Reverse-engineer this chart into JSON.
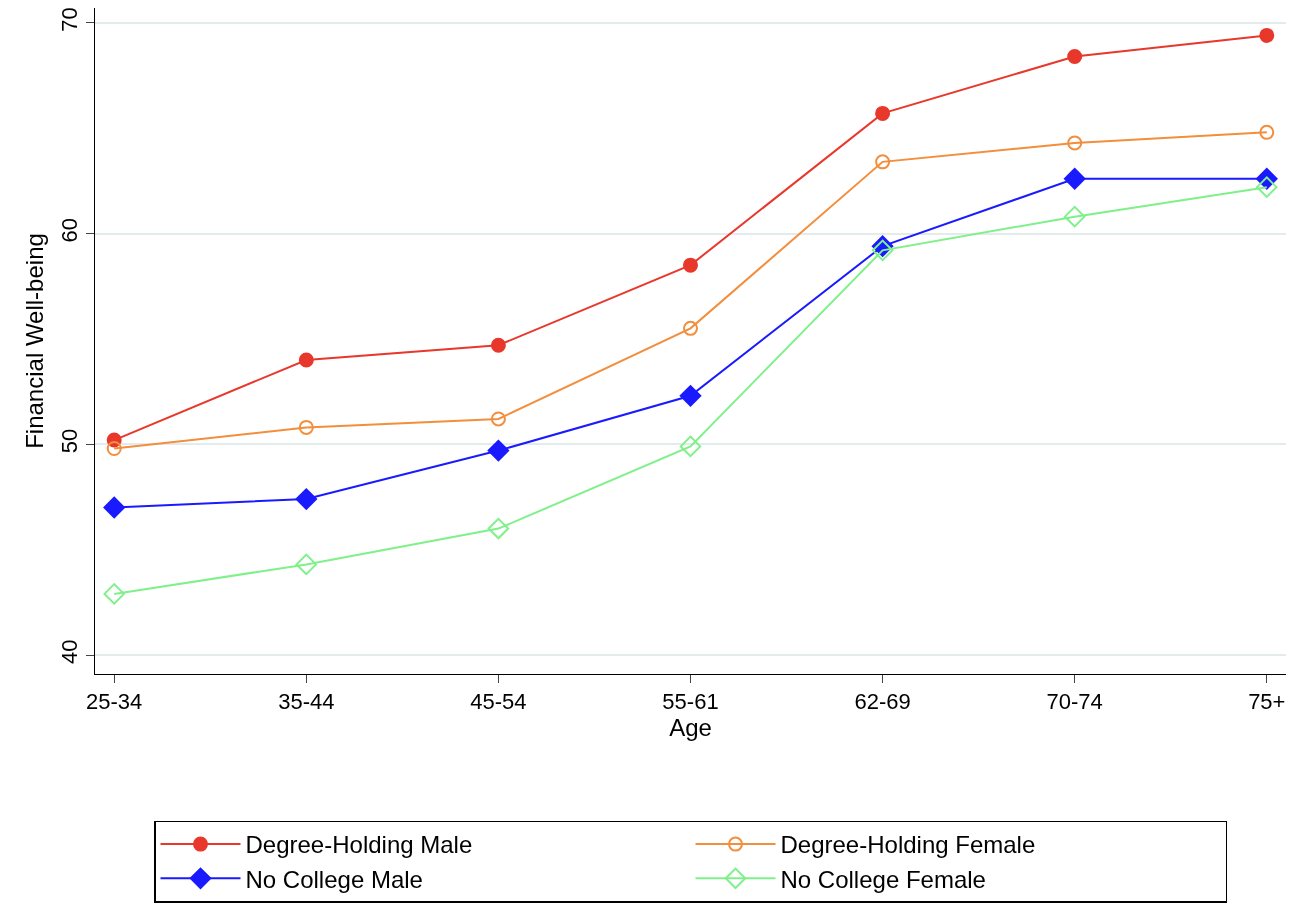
{
  "chart_data": {
    "type": "line",
    "xlabel": "Age",
    "ylabel": "Financial Well-being",
    "categories": [
      "25-34",
      "35-44",
      "45-54",
      "55-61",
      "62-69",
      "70-74",
      "75+"
    ],
    "series": [
      {
        "name": "Degree-Holding Male",
        "color": "#e8382b",
        "marker": "circle",
        "values": [
          50.2,
          54.0,
          54.7,
          58.5,
          65.7,
          68.4,
          69.4
        ]
      },
      {
        "name": "Degree-Holding Female",
        "color": "#f28e3c",
        "marker": "circle-open",
        "values": [
          49.8,
          50.8,
          51.2,
          55.5,
          63.4,
          64.3,
          64.8
        ]
      },
      {
        "name": "No College Male",
        "color": "#1a1aff",
        "marker": "diamond",
        "values": [
          47.0,
          47.4,
          49.7,
          52.3,
          59.4,
          62.6,
          62.6
        ]
      },
      {
        "name": "No College Female",
        "color": "#7ff08a",
        "marker": "diamond-open",
        "values": [
          42.9,
          44.3,
          46.0,
          49.9,
          59.2,
          60.8,
          62.2
        ]
      }
    ],
    "ylim": [
      39.1,
      70.7
    ],
    "yticks": [
      40,
      50,
      60,
      70
    ],
    "grid": "y",
    "legend": "bottom",
    "line_style": "solid"
  }
}
